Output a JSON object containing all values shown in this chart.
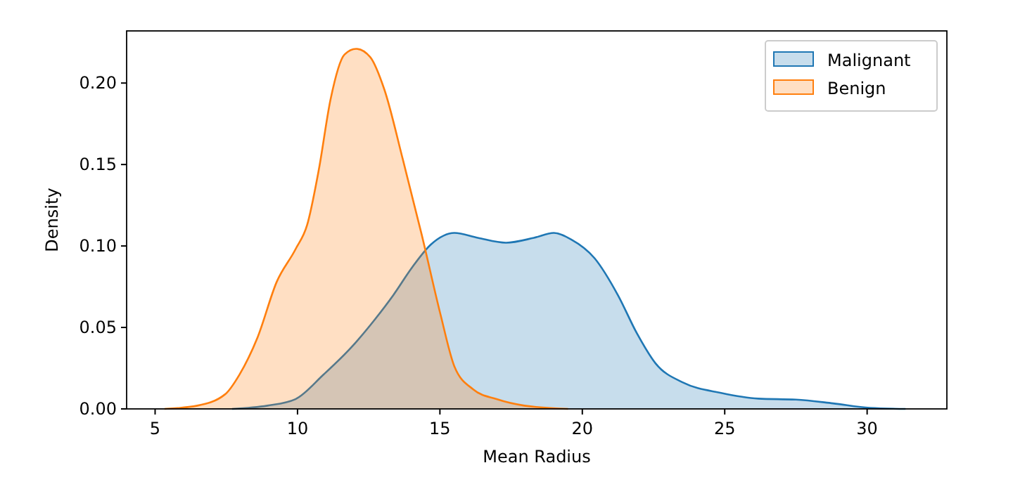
{
  "chart_data": {
    "type": "area",
    "xlabel": "Mean Radius",
    "ylabel": "Density",
    "xlim": [
      4.0,
      32.8
    ],
    "ylim": [
      0,
      0.232
    ],
    "xticks": [
      5,
      10,
      15,
      20,
      25,
      30
    ],
    "yticks": [
      {
        "value": 0,
        "label": "0.00"
      },
      {
        "value": 0.05,
        "label": "0.05"
      },
      {
        "value": 0.1,
        "label": "0.10"
      },
      {
        "value": 0.15,
        "label": "0.15"
      },
      {
        "value": 0.2,
        "label": "0.20"
      }
    ],
    "grid": false,
    "legend": "top right",
    "series": [
      {
        "name": "Malignant",
        "color": "#1f77b4",
        "x": [
          7.7,
          8.94,
          9.93,
          10.91,
          11.9,
          12.72,
          13.37,
          14.03,
          14.69,
          15.51,
          16.33,
          17.32,
          18.3,
          19.0,
          19.61,
          20.43,
          21.26,
          21.91,
          22.57,
          23.56,
          24.87,
          26.18,
          27.5,
          28.8,
          30.1,
          31.35
        ],
        "values": [
          0,
          0.002,
          0.006,
          0.021,
          0.038,
          0.055,
          0.07,
          0.087,
          0.101,
          0.108,
          0.105,
          0.102,
          0.105,
          0.108,
          0.104,
          0.0925,
          0.0695,
          0.0466,
          0.028,
          0.016,
          0.0098,
          0.0063,
          0.0057,
          0.0034,
          0.0006,
          0
        ]
      },
      {
        "name": "Benign",
        "color": "#ff7f0e",
        "x": [
          5.33,
          6.48,
          7.46,
          7.96,
          8.6,
          9.27,
          9.93,
          10.34,
          10.75,
          11.16,
          11.65,
          12.06,
          12.55,
          13.05,
          13.7,
          14.36,
          15.02,
          15.51,
          16.17,
          16.99,
          17.97,
          19.5
        ],
        "values": [
          0,
          0.002,
          0.009,
          0.021,
          0.044,
          0.078,
          0.098,
          0.113,
          0.147,
          0.19,
          0.2175,
          0.221,
          0.216,
          0.196,
          0.153,
          0.107,
          0.058,
          0.026,
          0.012,
          0.006,
          0.002,
          0
        ]
      }
    ]
  }
}
